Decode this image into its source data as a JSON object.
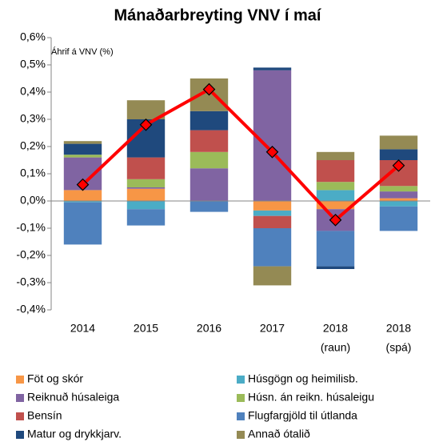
{
  "chart_data": {
    "type": "bar",
    "stacked": true,
    "title": "Mánaðarbreyting VNV í maí",
    "y_axis_label": "Áhrif á VNV (%)",
    "categories": [
      [
        "2014"
      ],
      [
        "2015"
      ],
      [
        "2016"
      ],
      [
        "2017"
      ],
      [
        "2018",
        "(raun)"
      ],
      [
        "2018",
        "(spá)"
      ]
    ],
    "ylim": [
      -0.4,
      0.6
    ],
    "yticks": [
      {
        "value": -0.4,
        "label": "-0,4%"
      },
      {
        "value": -0.3,
        "label": "-0,3%"
      },
      {
        "value": -0.2,
        "label": "-0,2%"
      },
      {
        "value": -0.1,
        "label": "-0,1%"
      },
      {
        "value": 0,
        "label": "0,0%"
      },
      {
        "value": 0.1,
        "label": "0,1%"
      },
      {
        "value": 0.2,
        "label": "0,2%"
      },
      {
        "value": 0.3,
        "label": "0,3%"
      },
      {
        "value": 0.4,
        "label": "0,4%"
      },
      {
        "value": 0.5,
        "label": "0,5%"
      },
      {
        "value": 0.6,
        "label": "0,6%"
      }
    ],
    "series": [
      {
        "name": "Föt og skór",
        "color": "#f79646",
        "values": [
          0.04,
          0.045,
          0,
          -0.035,
          -0.03,
          0.01
        ]
      },
      {
        "name": "Húsgögn og heimilisb.",
        "color": "#4bacc6",
        "values": [
          -0.005,
          -0.03,
          0,
          -0.02,
          0.04,
          -0.02
        ]
      },
      {
        "name": "Reiknuð húsaleiga",
        "color": "#8064a2",
        "values": [
          0.12,
          0.005,
          0.12,
          0.48,
          -0.08,
          0.025
        ]
      },
      {
        "name": "Húsn. án reikn. húsaleigu",
        "color": "#9bbb59",
        "values": [
          0.01,
          0.03,
          0.06,
          0,
          0.03,
          0.02
        ]
      },
      {
        "name": "Bensín",
        "color": "#c0504d",
        "values": [
          0,
          0.08,
          0.08,
          -0.045,
          0.08,
          0.095
        ]
      },
      {
        "name": "Flugfargjöld til útlanda",
        "color": "#4f81bd",
        "values": [
          -0.155,
          -0.06,
          -0.04,
          -0.14,
          -0.13,
          -0.09
        ]
      },
      {
        "name": "Matur og drykkjarv.",
        "color": "#1f497d",
        "values": [
          0.04,
          0.14,
          0.07,
          0.01,
          -0.01,
          0.04
        ]
      },
      {
        "name": "Annað ótalið",
        "color": "#948a54",
        "values": [
          0.01,
          0.07,
          0.12,
          -0.07,
          0.03,
          0.05
        ]
      }
    ],
    "line": {
      "color": "#ff0000",
      "marker_color": "#ff0000",
      "values": [
        0.06,
        0.28,
        0.41,
        0.18,
        -0.07,
        0.13
      ]
    }
  }
}
